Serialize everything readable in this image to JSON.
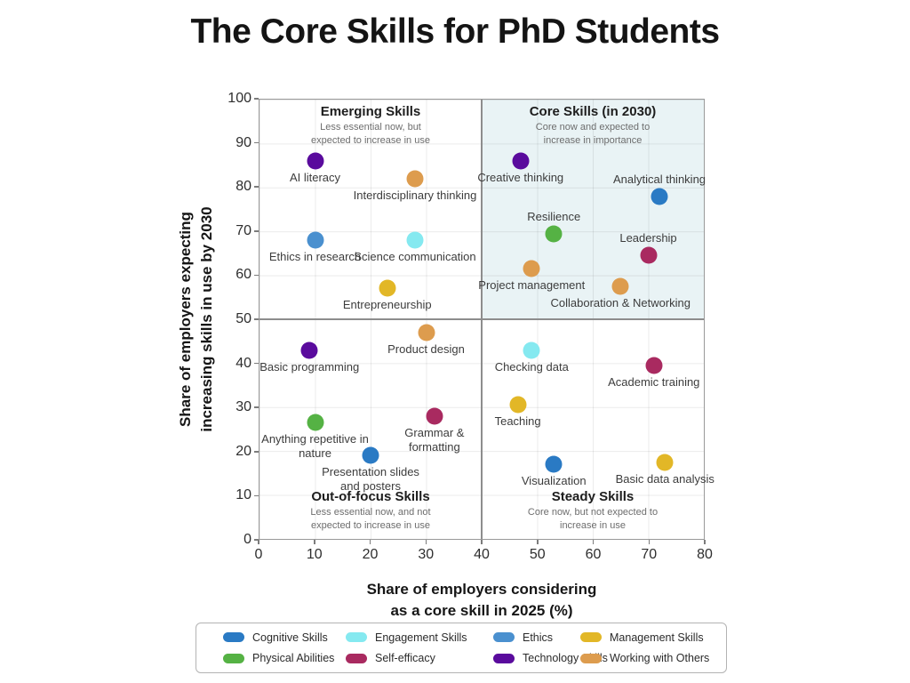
{
  "page": {
    "title": "The Core Skills for PhD Students"
  },
  "chart_data": {
    "type": "scatter",
    "title": "The Core Skills for PhD Students",
    "xlabel": "Share of employers considering\nas a core skill in 2025 (%)",
    "ylabel": "Share of employers expecting\nincreasing skills in use by 2030",
    "xlim": [
      0,
      80
    ],
    "ylim": [
      0,
      100
    ],
    "x_ticks": [
      0,
      10,
      20,
      30,
      40,
      50,
      60,
      70,
      80
    ],
    "y_ticks": [
      0,
      10,
      20,
      30,
      40,
      50,
      60,
      70,
      80,
      90,
      100
    ],
    "grid": true,
    "quadrant_divider": {
      "x": 40,
      "y": 50
    },
    "shade_color": "#e9f3f5",
    "quadrants": [
      {
        "name": "Emerging Skills",
        "subtitle": "Less essential now, but\nexpected to increase in use",
        "position": "top-left",
        "shaded": false
      },
      {
        "name": "Core Skills (in 2030)",
        "subtitle": "Core now and expected to\nincrease in importance",
        "position": "top-right",
        "shaded": true
      },
      {
        "name": "Out-of-focus Skills",
        "subtitle": "Less essential now, and not\nexpected to increase in use",
        "position": "bottom-left",
        "shaded": false
      },
      {
        "name": "Steady Skills",
        "subtitle": "Core now, but not expected to\nincrease in use",
        "position": "bottom-right",
        "shaded": false
      }
    ],
    "categories": {
      "cognitive": "#2a7ac4",
      "engagement": "#85e9f0",
      "ethics": "#4a90cf",
      "management": "#e2b727",
      "physical": "#55b244",
      "self_efficacy": "#a92a60",
      "technology": "#5a0b9d",
      "working_with_others": "#dd9c4e"
    },
    "points": [
      {
        "label": "AI literacy",
        "x": 10,
        "y": 86,
        "category": "technology",
        "label_position": "below"
      },
      {
        "label": "Interdisciplinary thinking",
        "x": 28,
        "y": 82,
        "category": "working_with_others",
        "label_position": "below"
      },
      {
        "label": "Creative thinking",
        "x": 47,
        "y": 86,
        "category": "technology",
        "label_position": "below"
      },
      {
        "label": "Analytical thinking",
        "x": 72,
        "y": 78,
        "category": "cognitive",
        "label_position": "above"
      },
      {
        "label": "Ethics in research",
        "x": 10,
        "y": 68,
        "category": "ethics",
        "label_position": "below"
      },
      {
        "label": "Science communication",
        "x": 28,
        "y": 68,
        "category": "engagement",
        "label_position": "below"
      },
      {
        "label": "Resilience",
        "x": 53,
        "y": 69.5,
        "category": "physical",
        "label_position": "above"
      },
      {
        "label": "Leadership",
        "x": 70,
        "y": 64.5,
        "category": "self_efficacy",
        "label_position": "above"
      },
      {
        "label": "Project management",
        "x": 49,
        "y": 61.5,
        "category": "working_with_others",
        "label_position": "below"
      },
      {
        "label": "Collaboration & Networking",
        "x": 65,
        "y": 57.5,
        "category": "working_with_others",
        "label_position": "below"
      },
      {
        "label": "Entrepreneurship",
        "x": 23,
        "y": 57,
        "category": "management",
        "label_position": "below"
      },
      {
        "label": "Product design",
        "x": 30,
        "y": 47,
        "category": "working_with_others",
        "label_position": "below"
      },
      {
        "label": "Basic programming",
        "x": 9,
        "y": 43,
        "category": "technology",
        "label_position": "below"
      },
      {
        "label": "Checking data",
        "x": 49,
        "y": 43,
        "category": "engagement",
        "label_position": "below"
      },
      {
        "label": "Academic training",
        "x": 71,
        "y": 39.5,
        "category": "self_efficacy",
        "label_position": "below"
      },
      {
        "label": "Teaching",
        "x": 46.5,
        "y": 30.5,
        "category": "management",
        "label_position": "below"
      },
      {
        "label": "Anything repetitive in\nnature",
        "x": 10,
        "y": 26.5,
        "category": "physical",
        "label_position": "below"
      },
      {
        "label": "Grammar &\nformatting",
        "x": 31.5,
        "y": 28,
        "category": "self_efficacy",
        "label_position": "below"
      },
      {
        "label": "Presentation slides\nand posters",
        "x": 20,
        "y": 19,
        "category": "cognitive",
        "label_position": "below"
      },
      {
        "label": "Visualization",
        "x": 53,
        "y": 17,
        "category": "cognitive",
        "label_position": "below"
      },
      {
        "label": "Basic data analysis",
        "x": 73,
        "y": 17.5,
        "category": "management",
        "label_position": "below"
      }
    ]
  },
  "legend": {
    "items": [
      {
        "label": "Cognitive Skills",
        "category": "cognitive"
      },
      {
        "label": "Engagement Skills",
        "category": "engagement"
      },
      {
        "label": "Ethics",
        "category": "ethics"
      },
      {
        "label": "Management Skills",
        "category": "management"
      },
      {
        "label": "Physical Abilities",
        "category": "physical"
      },
      {
        "label": "Self-efficacy",
        "category": "self_efficacy"
      },
      {
        "label": "Technology Skills",
        "category": "technology"
      },
      {
        "label": "Working with Others",
        "category": "working_with_others"
      }
    ]
  }
}
